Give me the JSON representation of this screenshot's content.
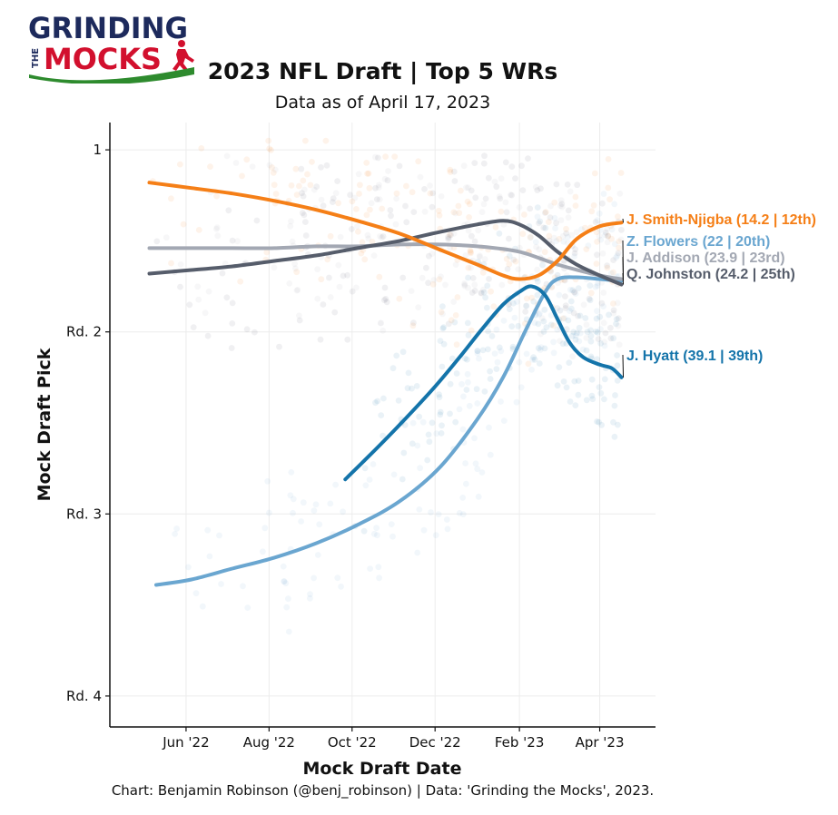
{
  "logo": {
    "line1": "GRINDING",
    "word_the": "THE",
    "line2": "MOCKS",
    "colors": {
      "navy": "#1d2a5c",
      "red": "#d2102e",
      "green": "#2e8b2e"
    }
  },
  "chart_data": {
    "type": "line",
    "title": "2023 NFL Draft | Top 5 WRs",
    "subtitle": "Data as of April 17, 2023",
    "xlabel": "Mock Draft Date",
    "ylabel": "Mock Draft Pick",
    "caption": "Chart: Benjamin Robinson (@benj_robinson) | Data: 'Grinding the Mocks', 2023.",
    "x_ticks": [
      {
        "date": "2022-06-01",
        "label": "Jun '22"
      },
      {
        "date": "2022-08-01",
        "label": "Aug '22"
      },
      {
        "date": "2022-10-01",
        "label": "Oct '22"
      },
      {
        "date": "2022-12-01",
        "label": "Dec '22"
      },
      {
        "date": "2023-02-01",
        "label": "Feb '23"
      },
      {
        "date": "2023-04-01",
        "label": "Apr '23"
      }
    ],
    "xlim": [
      "2022-04-06",
      "2023-05-12"
    ],
    "y_scale": "reversed",
    "ylim": [
      0.85,
      4.17
    ],
    "y_ticks": [
      {
        "value": 1,
        "label": "1"
      },
      {
        "value": 2,
        "label": "Rd. 2"
      },
      {
        "value": 3,
        "label": "Rd. 3"
      },
      {
        "value": 4,
        "label": "Rd. 4"
      }
    ],
    "grid": true,
    "series": [
      {
        "name": "J. Smith-Njigba",
        "label": "J. Smith-Njigba (14.2 | 12th)",
        "color": "#f57f17",
        "x": [
          "2022-05-05",
          "2022-06-05",
          "2022-07-05",
          "2022-08-05",
          "2022-09-05",
          "2022-10-05",
          "2022-11-05",
          "2022-12-05",
          "2023-01-01",
          "2023-01-20",
          "2023-02-01",
          "2023-02-15",
          "2023-03-01",
          "2023-03-15",
          "2023-04-01",
          "2023-04-17"
        ],
        "y": [
          1.18,
          1.21,
          1.24,
          1.28,
          1.33,
          1.39,
          1.46,
          1.55,
          1.63,
          1.69,
          1.71,
          1.69,
          1.61,
          1.49,
          1.42,
          1.4
        ]
      },
      {
        "name": "Z. Flowers",
        "label": "Z. Flowers (22 | 20th)",
        "color": "#6aa6d0",
        "x": [
          "2022-05-10",
          "2022-06-05",
          "2022-07-05",
          "2022-08-05",
          "2022-09-05",
          "2022-10-05",
          "2022-11-05",
          "2022-12-05",
          "2023-01-01",
          "2023-01-20",
          "2023-02-05",
          "2023-02-20",
          "2023-03-01",
          "2023-03-15",
          "2023-04-01",
          "2023-04-17"
        ],
        "y": [
          3.39,
          3.36,
          3.3,
          3.24,
          3.16,
          3.06,
          2.93,
          2.74,
          2.48,
          2.25,
          2.0,
          1.78,
          1.71,
          1.7,
          1.71,
          1.72
        ]
      },
      {
        "name": "J. Addison",
        "label": "J. Addison (23.9 | 23rd)",
        "color": "#a3a8b3",
        "x": [
          "2022-05-05",
          "2022-06-05",
          "2022-07-05",
          "2022-08-05",
          "2022-09-05",
          "2022-10-05",
          "2022-11-05",
          "2022-12-05",
          "2023-01-01",
          "2023-02-01",
          "2023-03-01",
          "2023-04-01",
          "2023-04-17"
        ],
        "y": [
          1.54,
          1.54,
          1.54,
          1.54,
          1.53,
          1.53,
          1.52,
          1.52,
          1.53,
          1.56,
          1.63,
          1.69,
          1.71
        ]
      },
      {
        "name": "Q. Johnston",
        "label": "Q. Johnston (24.2 | 25th)",
        "color": "#565d6b",
        "x": [
          "2022-05-05",
          "2022-06-05",
          "2022-07-05",
          "2022-08-05",
          "2022-09-05",
          "2022-10-05",
          "2022-11-05",
          "2022-12-05",
          "2023-01-01",
          "2023-01-20",
          "2023-02-01",
          "2023-02-15",
          "2023-03-01",
          "2023-03-15",
          "2023-04-01",
          "2023-04-17"
        ],
        "y": [
          1.68,
          1.66,
          1.64,
          1.61,
          1.58,
          1.54,
          1.5,
          1.45,
          1.41,
          1.39,
          1.41,
          1.47,
          1.56,
          1.63,
          1.69,
          1.74
        ]
      },
      {
        "name": "J. Hyatt",
        "label": "J. Hyatt (39.1 | 39th)",
        "color": "#1474aa",
        "x": [
          "2022-09-26",
          "2022-10-15",
          "2022-11-05",
          "2022-12-01",
          "2022-12-20",
          "2023-01-05",
          "2023-01-20",
          "2023-02-01",
          "2023-02-10",
          "2023-02-20",
          "2023-03-01",
          "2023-03-10",
          "2023-03-20",
          "2023-04-01",
          "2023-04-10",
          "2023-04-17"
        ],
        "y": [
          2.81,
          2.67,
          2.51,
          2.3,
          2.13,
          1.98,
          1.85,
          1.78,
          1.75,
          1.8,
          1.93,
          2.06,
          2.14,
          2.18,
          2.2,
          2.25
        ]
      }
    ]
  }
}
